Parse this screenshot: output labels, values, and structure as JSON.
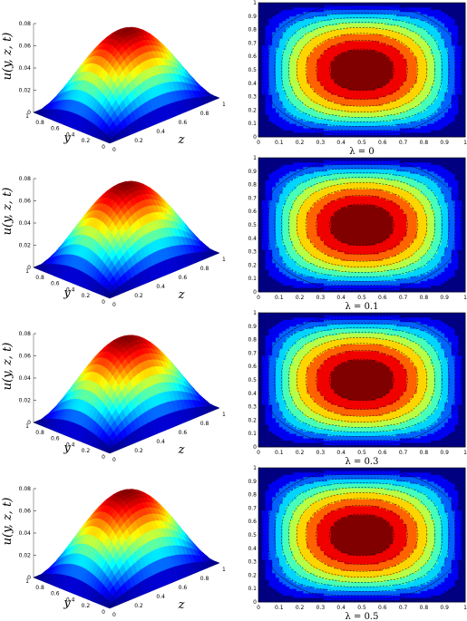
{
  "chart_data": {
    "type": "surface-contour-grid",
    "panels": [
      {
        "lambda_label": "λ = 0",
        "peak": 0.068,
        "contour_levels": 9
      },
      {
        "lambda_label": "λ = 0.1",
        "peak": 0.069,
        "contour_levels": 9
      },
      {
        "lambda_label": "λ = 0.3",
        "peak": 0.07,
        "contour_levels": 9
      },
      {
        "lambda_label": "λ = 0.5",
        "peak": 0.071,
        "contour_levels": 9
      }
    ],
    "surface": {
      "zlabel": "u(y, z, t)",
      "ylabel": "y",
      "xlabel": "z",
      "zlim": [
        0,
        0.08
      ],
      "z_ticks": [
        "0",
        "0.02",
        "0.04",
        "0.06",
        "0.08"
      ],
      "y_ticks": [
        "0",
        "0.2",
        "0.4",
        "0.6",
        "0.8",
        "1"
      ],
      "x_ticks": [
        "0",
        "0.2",
        "0.4",
        "0.6",
        "0.8",
        "1"
      ],
      "colormap": "jet"
    },
    "contour": {
      "xlim": [
        0,
        1
      ],
      "ylim": [
        0,
        1
      ],
      "x_ticks": [
        "0",
        "0.1",
        "0.2",
        "0.3",
        "0.4",
        "0.5",
        "0.6",
        "0.7",
        "0.8",
        "0.9",
        "1"
      ],
      "y_ticks": [
        "0",
        "0.1",
        "0.2",
        "0.3",
        "0.4",
        "0.5",
        "0.6",
        "0.7",
        "0.8",
        "0.9",
        "1"
      ],
      "colormap": "jet",
      "dashed_lines": true
    }
  }
}
